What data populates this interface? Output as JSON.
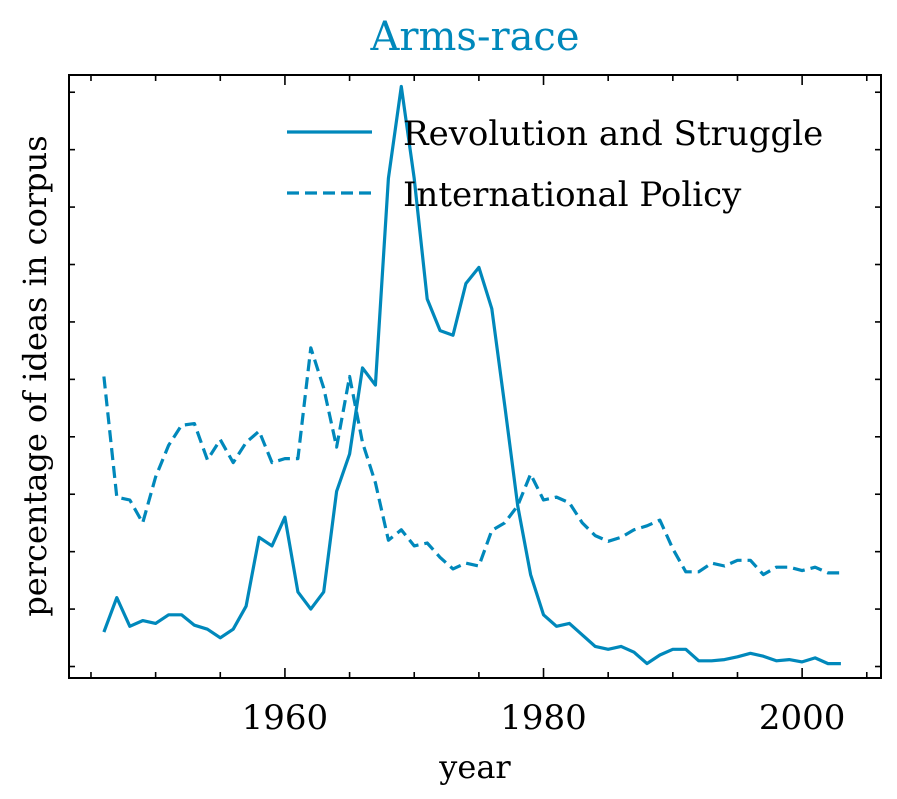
{
  "colors": {
    "series": "#0088bb",
    "axes": "#000000",
    "background": "#ffffff"
  },
  "chart_data": {
    "type": "line",
    "title": "Arms-race",
    "xlabel": "year",
    "ylabel": "percentage of ideas in corpus",
    "xlim": [
      1943.3,
      2006.1
    ],
    "ylim": [
      -0.02,
      1.03
    ],
    "x_ticks": [
      1960,
      1980,
      2000
    ],
    "y_tick_labels": "none",
    "grid": false,
    "legend_position": "top-right",
    "x": [
      1946,
      1947,
      1948,
      1949,
      1950,
      1951,
      1952,
      1953,
      1954,
      1955,
      1956,
      1957,
      1958,
      1959,
      1960,
      1961,
      1962,
      1963,
      1964,
      1965,
      1966,
      1967,
      1968,
      1969,
      1970,
      1971,
      1972,
      1973,
      1974,
      1975,
      1976,
      1977,
      1978,
      1979,
      1980,
      1981,
      1982,
      1983,
      1984,
      1985,
      1986,
      1987,
      1988,
      1989,
      1990,
      1991,
      1992,
      1993,
      1994,
      1995,
      1996,
      1997,
      1998,
      1999,
      2000,
      2001,
      2002,
      2003
    ],
    "series": [
      {
        "name": "Revolution and Struggle",
        "style": "solid",
        "values": [
          0.06,
          0.12,
          0.07,
          0.08,
          0.075,
          0.09,
          0.09,
          0.072,
          0.065,
          0.05,
          0.065,
          0.105,
          0.225,
          0.21,
          0.26,
          0.13,
          0.1,
          0.13,
          0.305,
          0.37,
          0.52,
          0.49,
          0.85,
          1.01,
          0.85,
          0.64,
          0.585,
          0.577,
          0.667,
          0.695,
          0.623,
          0.455,
          0.28,
          0.16,
          0.09,
          0.07,
          0.075,
          0.055,
          0.035,
          0.03,
          0.035,
          0.025,
          0.005,
          0.02,
          0.03,
          0.03,
          0.01,
          0.01,
          0.012,
          0.017,
          0.023,
          0.018,
          0.01,
          0.012,
          0.008,
          0.015,
          0.005,
          0.005
        ]
      },
      {
        "name": "International Policy",
        "style": "dashed",
        "values": [
          0.505,
          0.295,
          0.29,
          0.25,
          0.33,
          0.385,
          0.42,
          0.423,
          0.36,
          0.395,
          0.355,
          0.39,
          0.41,
          0.355,
          0.362,
          0.362,
          0.555,
          0.485,
          0.382,
          0.505,
          0.39,
          0.32,
          0.22,
          0.238,
          0.21,
          0.215,
          0.19,
          0.17,
          0.18,
          0.175,
          0.237,
          0.25,
          0.28,
          0.335,
          0.29,
          0.295,
          0.285,
          0.25,
          0.228,
          0.218,
          0.225,
          0.238,
          0.245,
          0.255,
          0.205,
          0.165,
          0.165,
          0.18,
          0.175,
          0.185,
          0.185,
          0.16,
          0.173,
          0.173,
          0.167,
          0.173,
          0.163,
          0.163
        ]
      }
    ]
  }
}
